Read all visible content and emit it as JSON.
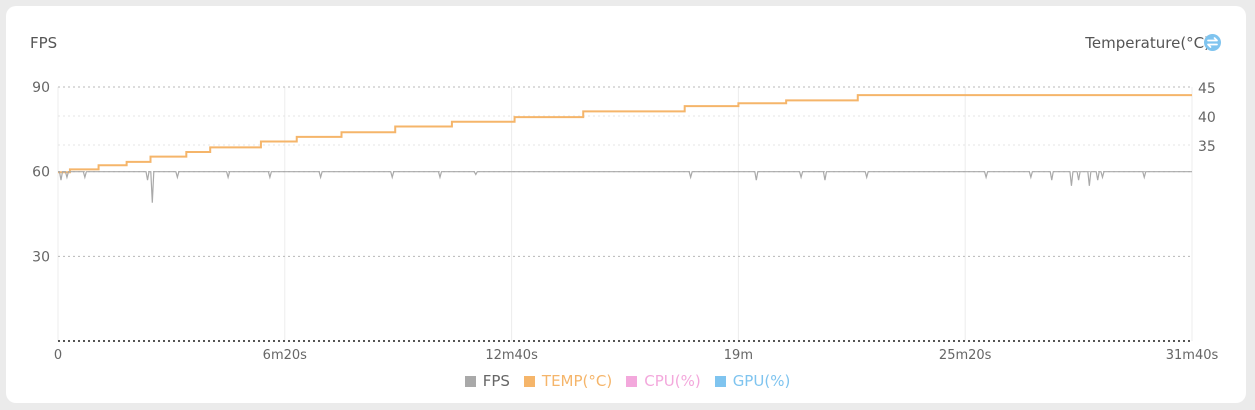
{
  "left_axis_title": "FPS",
  "right_axis_title": "Temperature(°C)",
  "legend": [
    {
      "label": "FPS",
      "color": "#a9a9a9"
    },
    {
      "label": "TEMP(°C)",
      "color": "#f5b56a"
    },
    {
      "label": "CPU(%)",
      "color": "#f3a8dc"
    },
    {
      "label": "GPU(%)",
      "color": "#7fc4ef"
    }
  ],
  "chart_data": {
    "type": "line",
    "x_unit": "seconds",
    "xlim": [
      0,
      1900
    ],
    "x_ticks": [
      {
        "value": 0,
        "label": "0"
      },
      {
        "value": 380,
        "label": "6m20s"
      },
      {
        "value": 760,
        "label": "12m40s"
      },
      {
        "value": 1140,
        "label": "19m"
      },
      {
        "value": 1520,
        "label": "25m20s"
      },
      {
        "value": 1900,
        "label": "31m40s"
      }
    ],
    "y_left": {
      "title": "FPS",
      "ylim": [
        0,
        90
      ],
      "ticks": [
        30,
        60,
        90
      ]
    },
    "y_right": {
      "title": "Temperature(°C)",
      "ylim": [
        30,
        45
      ],
      "ticks": [
        35,
        40,
        45
      ]
    },
    "grid": "horizontal dotted, vertical solid at x ticks",
    "series": [
      {
        "name": "TEMP(°C)",
        "axis": "right",
        "color": "#f5b56a",
        "step": true,
        "points": [
          [
            0,
            30.3
          ],
          [
            20,
            30.8
          ],
          [
            68,
            31.5
          ],
          [
            115,
            32.1
          ],
          [
            155,
            33.0
          ],
          [
            215,
            33.8
          ],
          [
            255,
            34.6
          ],
          [
            340,
            35.6
          ],
          [
            400,
            36.4
          ],
          [
            475,
            37.2
          ],
          [
            565,
            38.2
          ],
          [
            660,
            39.0
          ],
          [
            765,
            39.8
          ],
          [
            880,
            40.8
          ],
          [
            1050,
            41.7
          ],
          [
            1140,
            42.2
          ],
          [
            1220,
            42.7
          ],
          [
            1340,
            43.6
          ],
          [
            1900,
            43.6
          ]
        ]
      },
      {
        "name": "FPS",
        "axis": "left",
        "color": "#a9a9a9",
        "baseline": 60,
        "dips": [
          [
            5,
            57
          ],
          [
            15,
            58
          ],
          [
            45,
            58
          ],
          [
            150,
            57
          ],
          [
            158,
            49
          ],
          [
            200,
            58
          ],
          [
            285,
            58
          ],
          [
            355,
            58
          ],
          [
            440,
            58
          ],
          [
            560,
            58
          ],
          [
            640,
            58
          ],
          [
            700,
            59
          ],
          [
            1060,
            58
          ],
          [
            1170,
            57
          ],
          [
            1245,
            58
          ],
          [
            1285,
            57
          ],
          [
            1355,
            58
          ],
          [
            1555,
            58
          ],
          [
            1630,
            58
          ],
          [
            1665,
            57
          ],
          [
            1698,
            55
          ],
          [
            1710,
            57
          ],
          [
            1728,
            55
          ],
          [
            1742,
            57
          ],
          [
            1750,
            58
          ],
          [
            1820,
            58
          ]
        ]
      },
      {
        "name": "CPU(%)",
        "axis": "left",
        "color": "#f3a8dc",
        "points": []
      },
      {
        "name": "GPU(%)",
        "axis": "left",
        "color": "#7fc4ef",
        "points": []
      }
    ]
  }
}
